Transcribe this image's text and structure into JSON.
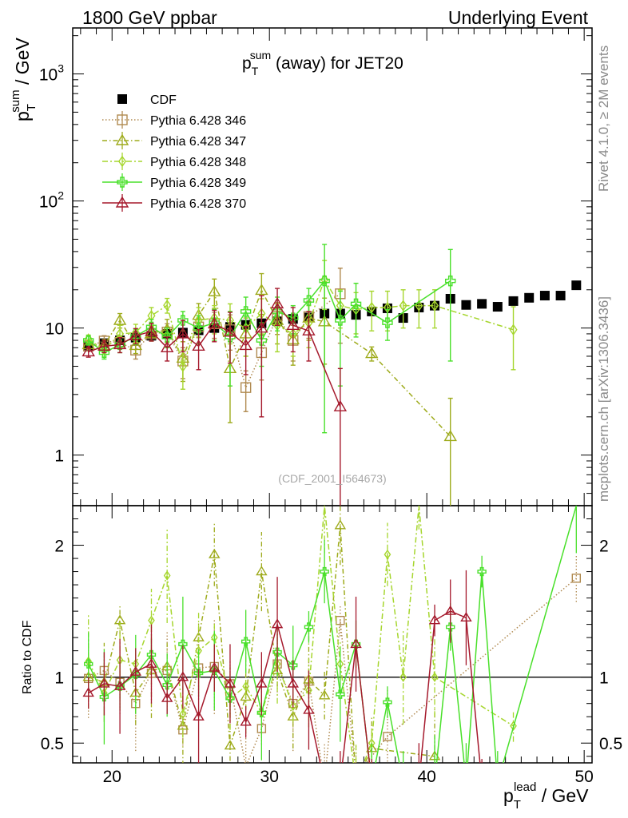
{
  "header": {
    "left": "1800 GeV ppbar",
    "right": "Underlying Event"
  },
  "side_labels": {
    "rivet": "Rivet 4.1.0, ≥ 2M events",
    "mcplots": "mcplots.cern.ch [arXiv:1306.3436]"
  },
  "chart_data": {
    "type": "scatter",
    "title_main": "p",
    "title_sub": "T",
    "title_sup": "sum",
    "title_rest": " (away) for JET20",
    "watermark": "(CDF_2001_I564673)",
    "ylabel_main": "p",
    "ylabel_sub": "T",
    "ylabel_sup": "sum",
    "ylabel_rest": " / GeV",
    "xlabel_main": "p",
    "xlabel_sub": "T",
    "xlabel_sup": "lead",
    "xlabel_rest": " / GeV",
    "ratio_ylabel": "Ratio to CDF",
    "xlim": [
      17.5,
      50.5
    ],
    "ylim": [
      0.4,
      2300
    ],
    "yscale": "log",
    "ratio_ylim": [
      0.35,
      2.3
    ],
    "x_ticks": [
      20,
      30,
      40,
      50
    ],
    "x_tick_labels": [
      "20",
      "30",
      "40",
      "50"
    ],
    "y_ticks": [
      {
        "v": 1,
        "base": "1",
        "exp": ""
      },
      {
        "v": 10,
        "base": "10",
        "exp": ""
      },
      {
        "v": 100,
        "base": "10",
        "exp": "2"
      },
      {
        "v": 1000,
        "base": "10",
        "exp": "3"
      }
    ],
    "ratio_ticks": [
      {
        "v": 0.5,
        "label": "0.5"
      },
      {
        "v": 1,
        "label": "1"
      },
      {
        "v": 2,
        "label": "2"
      }
    ],
    "series": [
      {
        "name": "CDF",
        "marker": "filled-square",
        "color": "#000000",
        "dash": "",
        "line": false,
        "x": [
          18.5,
          19.5,
          20.5,
          21.5,
          22.5,
          23.5,
          24.5,
          25.5,
          26.5,
          27.5,
          28.5,
          29.5,
          30.5,
          31.5,
          32.5,
          33.5,
          34.5,
          35.5,
          36.5,
          37.5,
          38.5,
          39.5,
          40.5,
          41.5,
          42.5,
          43.5,
          44.5,
          45.5,
          46.5,
          47.5,
          48.5,
          49.5
        ],
        "y": [
          7.3,
          7.6,
          8.0,
          8.4,
          8.7,
          9.0,
          9.2,
          9.6,
          10.0,
          10.2,
          10.6,
          10.9,
          11.3,
          11.8,
          12.1,
          13.0,
          13.0,
          12.7,
          13.5,
          14.3,
          12.0,
          14.5,
          15.0,
          17.0,
          15.2,
          15.5,
          14.7,
          16.3,
          17.3,
          18.0,
          18.0,
          21.7
        ]
      },
      {
        "name": "Pythia 6.428 346",
        "marker": "open-square",
        "color": "#b08a50",
        "dash": "1.5,2.5",
        "line": true,
        "x": [
          18.5,
          19.5,
          20.5,
          21.5,
          22.5,
          23.5,
          24.5,
          25.5,
          26.5,
          27.5,
          28.5,
          29.5,
          30.5,
          31.5,
          32.5,
          34.5
        ],
        "y": [
          7.2,
          7.9,
          7.7,
          6.7,
          9.0,
          9.3,
          5.5,
          10.2,
          10.8,
          9.7,
          3.4,
          6.4,
          12.4,
          8.0,
          12.3,
          18.6
        ],
        "ye": [
          0.6,
          0.8,
          0.9,
          1.0,
          1.1,
          1.5,
          1.5,
          1.8,
          2.5,
          3.0,
          1.2,
          2.5,
          3.5,
          2.5,
          4.0,
          11.0
        ],
        "rx": [
          18.5,
          19.5,
          20.5,
          21.5,
          22.5,
          23.5,
          24.5,
          25.5,
          26.5,
          27.5,
          28.5,
          29.5,
          30.5,
          31.5,
          32.5,
          33.5,
          34.5,
          35.5,
          37.5,
          49.5
        ],
        "ry": [
          0.99,
          1.05,
          0.96,
          0.8,
          1.03,
          1.05,
          0.6,
          1.07,
          1.08,
          0.95,
          0.32,
          0.61,
          1.1,
          0.8,
          0.97,
          0.2,
          1.43,
          0.25,
          0.55,
          1.75
        ]
      },
      {
        "name": "Pythia 6.428 347",
        "marker": "open-triangle",
        "color": "#9eab1c",
        "dash": "6,3,1.5,3",
        "line": true,
        "x": [
          18.5,
          19.5,
          20.5,
          21.5,
          22.5,
          23.5,
          24.5,
          25.5,
          26.5,
          27.5,
          28.5,
          29.5,
          30.5,
          31.5,
          32.5,
          33.5,
          36.5,
          41.5
        ],
        "y": [
          7.4,
          7.3,
          11.5,
          7.3,
          9.1,
          9.7,
          5.8,
          12.6,
          19.3,
          4.8,
          9.0,
          19.8,
          11.5,
          8.1,
          12.0,
          11.2,
          6.3,
          1.4
        ],
        "ye": [
          0.6,
          0.8,
          1.5,
          1.0,
          1.2,
          2.0,
          2.0,
          3.0,
          5.0,
          3.0,
          3.0,
          7.0,
          4.0,
          3.0,
          4.0,
          6.0,
          0.8,
          1.4
        ],
        "rx": [
          18.5,
          19.5,
          20.5,
          21.5,
          22.5,
          23.5,
          24.5,
          25.5,
          26.5,
          27.5,
          28.5,
          29.5,
          30.5,
          31.5,
          32.5,
          33.5,
          34.5,
          35.5,
          36.5,
          40.5
        ],
        "ry": [
          1.0,
          0.96,
          1.43,
          0.88,
          1.05,
          1.08,
          0.63,
          1.3,
          1.93,
          0.48,
          0.85,
          1.8,
          1.05,
          0.7,
          0.98,
          0.86,
          2.15,
          0.2,
          0.46,
          0.4
        ]
      },
      {
        "name": "Pythia 6.428 348",
        "marker": "open-diamond",
        "color": "#a6d62e",
        "dash": "7,3,2,3",
        "line": true,
        "x": [
          18.5,
          19.5,
          20.5,
          21.5,
          22.5,
          23.5,
          24.5,
          25.5,
          26.5,
          27.5,
          28.5,
          29.5,
          30.5,
          31.5,
          32.5,
          33.5,
          34.5,
          35.5,
          36.5,
          37.5,
          38.5,
          39.5,
          40.5,
          45.5
        ],
        "y": [
          8.2,
          6.7,
          9.0,
          9.2,
          12.5,
          15.1,
          5.0,
          11.5,
          12.0,
          11.5,
          10.0,
          13.0,
          10.5,
          9.0,
          11.0,
          24.0,
          15.0,
          14.0,
          14.5,
          14.5,
          15.0,
          15.0,
          15.0,
          9.7
        ],
        "ye": [
          0.6,
          0.8,
          1.5,
          1.5,
          2.0,
          2.0,
          1.7,
          3.0,
          3.0,
          4.0,
          4.0,
          4.0,
          4.0,
          3.0,
          4.0,
          10.0,
          5.0,
          5.0,
          5.0,
          5.0,
          5.0,
          5.0,
          5.0,
          5.0
        ],
        "rx": [
          18.5,
          19.5,
          20.5,
          21.5,
          22.5,
          23.5,
          24.5,
          25.5,
          26.5,
          27.5,
          28.5,
          29.5,
          30.5,
          31.5,
          32.5,
          33.5,
          34.5,
          35.5,
          36.5,
          37.5,
          38.5,
          39.5,
          40.5,
          45.5
        ],
        "ry": [
          1.12,
          0.88,
          1.13,
          1.1,
          1.43,
          1.77,
          0.72,
          1.2,
          1.3,
          0.84,
          0.93,
          0.73,
          1.1,
          0.78,
          0.9,
          2.3,
          1.1,
          0.2,
          0.5,
          1.93,
          1.0,
          2.3,
          1.0,
          0.63
        ]
      },
      {
        "name": "Pythia 6.428 349",
        "marker": "open-cross",
        "color": "#49e02a",
        "dash": "",
        "line": true,
        "x": [
          18.5,
          19.5,
          20.5,
          21.5,
          22.5,
          23.5,
          24.5,
          25.5,
          26.5,
          27.5,
          28.5,
          29.5,
          30.5,
          31.5,
          32.5,
          33.5,
          34.5,
          35.5,
          37.5,
          41.5
        ],
        "y": [
          8.0,
          6.4,
          7.4,
          8.6,
          10.2,
          8.5,
          11.5,
          10.0,
          11.0,
          8.5,
          13.5,
          8.0,
          13.5,
          12.0,
          16.5,
          23.5,
          11.5,
          15.5,
          11.0,
          23.5
        ],
        "ye": [
          0.6,
          0.7,
          1.0,
          1.2,
          1.5,
          1.5,
          2.0,
          2.5,
          3.0,
          5.0,
          4.0,
          3.0,
          4.0,
          3.0,
          4.0,
          22.0,
          8.0,
          7.0,
          3.0,
          18.0
        ],
        "rx": [
          18.5,
          19.5,
          20.5,
          21.5,
          22.5,
          23.5,
          24.5,
          25.5,
          26.5,
          27.5,
          28.5,
          29.5,
          30.5,
          31.5,
          32.5,
          33.5,
          34.5,
          35.5,
          36.5,
          37.5,
          38.5,
          40.5,
          41.5,
          42.5,
          43.5,
          44.5,
          49.5
        ],
        "ry": [
          1.1,
          0.85,
          0.93,
          1.02,
          1.17,
          0.94,
          1.25,
          1.03,
          1.05,
          0.84,
          1.27,
          0.73,
          1.19,
          1.09,
          1.38,
          1.8,
          0.87,
          1.25,
          0.2,
          0.81,
          0.2,
          0.2,
          1.38,
          0.2,
          1.8,
          0.2,
          2.3
        ]
      },
      {
        "name": "Pythia 6.428 370",
        "marker": "open-triangle",
        "color": "#a5192c",
        "dash": "",
        "line": true,
        "x": [
          18.5,
          19.5,
          20.5,
          21.5,
          22.5,
          23.5,
          24.5,
          25.5,
          26.5,
          27.5,
          28.5,
          29.5,
          30.5,
          31.5,
          32.5,
          34.5
        ],
        "y": [
          6.5,
          7.2,
          7.4,
          8.7,
          9.4,
          7.0,
          9.0,
          7.2,
          10.8,
          9.3,
          7.3,
          10.0,
          15.5,
          10.5,
          9.5,
          2.4
        ],
        "ye": [
          0.6,
          0.8,
          1.0,
          1.2,
          1.5,
          1.5,
          2.5,
          2.5,
          3.0,
          4.0,
          3.0,
          8.0,
          5.0,
          4.0,
          4.0,
          2.4
        ],
        "rx": [
          18.5,
          19.5,
          20.5,
          21.5,
          22.5,
          23.5,
          24.5,
          25.5,
          26.5,
          27.5,
          28.5,
          29.5,
          30.5,
          31.5,
          32.5,
          33.5,
          34.5,
          35.5,
          36.5,
          39.5,
          40.5,
          41.5,
          42.5,
          43.5
        ],
        "ry": [
          0.88,
          0.95,
          0.93,
          1.04,
          1.1,
          0.84,
          1.0,
          0.7,
          1.07,
          0.95,
          0.66,
          0.95,
          1.4,
          0.95,
          0.75,
          0.2,
          0.2,
          1.25,
          0.2,
          0.2,
          1.43,
          1.5,
          1.45,
          0.2
        ]
      }
    ]
  }
}
